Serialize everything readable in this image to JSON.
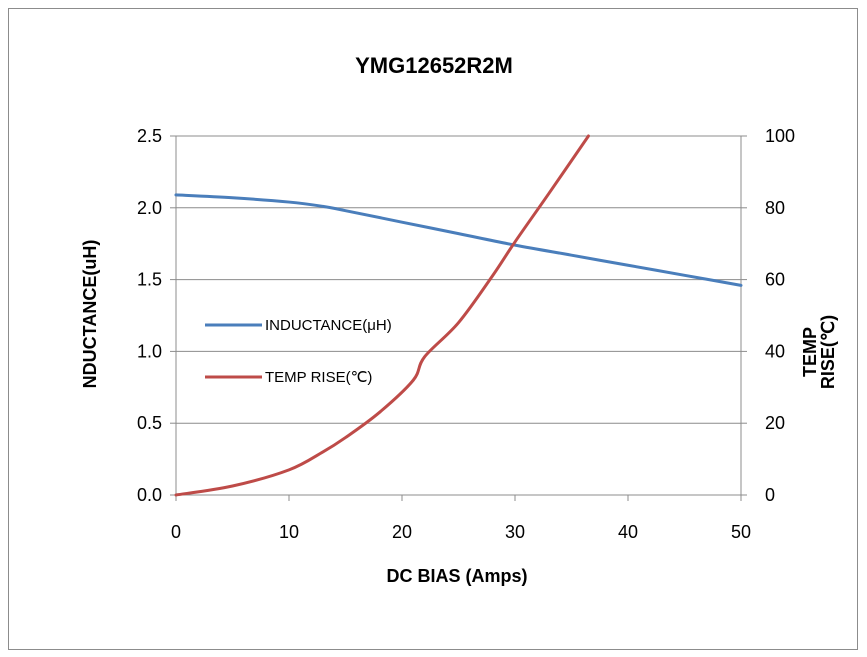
{
  "chart_data": {
    "type": "line",
    "title": "YMG12652R2M",
    "xlabel": "DC BIAS (Amps)",
    "ylabel_left": "NDUCTANCE(uH)",
    "ylabel_right_line1": "TEMP",
    "ylabel_right_line2": "RISE(℃)",
    "xlim": [
      0,
      50
    ],
    "ylim_left": [
      0,
      2.5
    ],
    "ylim_right": [
      0,
      100
    ],
    "x_ticks": [
      "0",
      "10",
      "20",
      "30",
      "40",
      "50"
    ],
    "y_left_ticks": [
      "0.0",
      "0.5",
      "1.0",
      "1.5",
      "2.0",
      "2.5"
    ],
    "y_right_ticks": [
      "0",
      "20",
      "40",
      "60",
      "80",
      "100"
    ],
    "grid": "horizontal",
    "legend_position": "left",
    "series": [
      {
        "name": "INDUCTANCE(μH)",
        "axis": "left",
        "color": "#4a7ebb",
        "x": [
          0,
          5,
          10,
          13,
          15,
          20,
          25,
          30,
          35,
          40,
          45,
          50
        ],
        "y": [
          2.09,
          2.07,
          2.04,
          2.01,
          1.98,
          1.9,
          1.82,
          1.74,
          1.67,
          1.6,
          1.53,
          1.46
        ]
      },
      {
        "name": "TEMP RISE(℃)",
        "axis": "right",
        "color": "#be4b48",
        "x": [
          0,
          5,
          10,
          13,
          15,
          18,
          21,
          22,
          25,
          28,
          30,
          33,
          36.5
        ],
        "y": [
          0,
          2.5,
          7,
          12,
          16,
          23,
          32,
          38.5,
          48,
          61,
          70.5,
          84,
          100
        ]
      }
    ]
  }
}
